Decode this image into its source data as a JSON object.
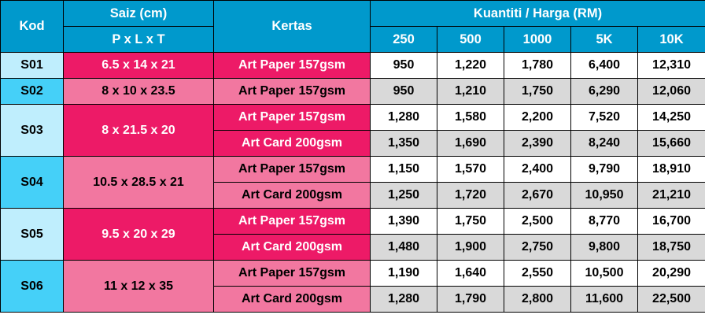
{
  "header": {
    "kod": "Kod",
    "saiz": "Saiz (cm)",
    "saiz_sub": "P x L x T",
    "kertas": "Kertas",
    "kuantiti": "Kuantiti / Harga (RM)",
    "quantities": [
      "250",
      "500",
      "1000",
      "5K",
      "10K"
    ]
  },
  "colors": {
    "header": "#0099cc",
    "kod_light": "#bfeefd",
    "kod_dark": "#45d0f8",
    "pink_hot": "#ed1a67",
    "pink_light": "#f277a0",
    "row_grey": "#d9d9d9"
  },
  "products": [
    {
      "kod": "S01",
      "saiz": "6.5 x 14 x 21",
      "papers": [
        {
          "kertas": "Art Paper 157gsm",
          "prices": [
            "950",
            "1,220",
            "1,780",
            "6,400",
            "12,310"
          ]
        }
      ]
    },
    {
      "kod": "S02",
      "saiz": "8 x 10 x 23.5",
      "papers": [
        {
          "kertas": "Art Paper 157gsm",
          "prices": [
            "950",
            "1,210",
            "1,750",
            "6,290",
            "12,060"
          ]
        }
      ]
    },
    {
      "kod": "S03",
      "saiz": "8 x 21.5 x 20",
      "papers": [
        {
          "kertas": "Art Paper 157gsm",
          "prices": [
            "1,280",
            "1,580",
            "2,200",
            "7,520",
            "14,250"
          ]
        },
        {
          "kertas": "Art Card 200gsm",
          "prices": [
            "1,350",
            "1,690",
            "2,390",
            "8,240",
            "15,660"
          ]
        }
      ]
    },
    {
      "kod": "S04",
      "saiz": "10.5 x 28.5 x 21",
      "papers": [
        {
          "kertas": "Art Paper 157gsm",
          "prices": [
            "1,150",
            "1,570",
            "2,400",
            "9,790",
            "18,910"
          ]
        },
        {
          "kertas": "Art Card 200gsm",
          "prices": [
            "1,250",
            "1,720",
            "2,670",
            "10,950",
            "21,210"
          ]
        }
      ]
    },
    {
      "kod": "S05",
      "saiz": "9.5 x 20 x 29",
      "papers": [
        {
          "kertas": "Art Paper 157gsm",
          "prices": [
            "1,390",
            "1,750",
            "2,500",
            "8,770",
            "16,700"
          ]
        },
        {
          "kertas": "Art Card 200gsm",
          "prices": [
            "1,480",
            "1,900",
            "2,750",
            "9,800",
            "18,750"
          ]
        }
      ]
    },
    {
      "kod": "S06",
      "saiz": "11 x 12 x 35",
      "papers": [
        {
          "kertas": "Art Paper 157gsm",
          "prices": [
            "1,190",
            "1,640",
            "2,550",
            "10,500",
            "20,290"
          ]
        },
        {
          "kertas": "Art Card 200gsm",
          "prices": [
            "1,280",
            "1,790",
            "2,800",
            "11,600",
            "22,500"
          ]
        }
      ]
    }
  ]
}
